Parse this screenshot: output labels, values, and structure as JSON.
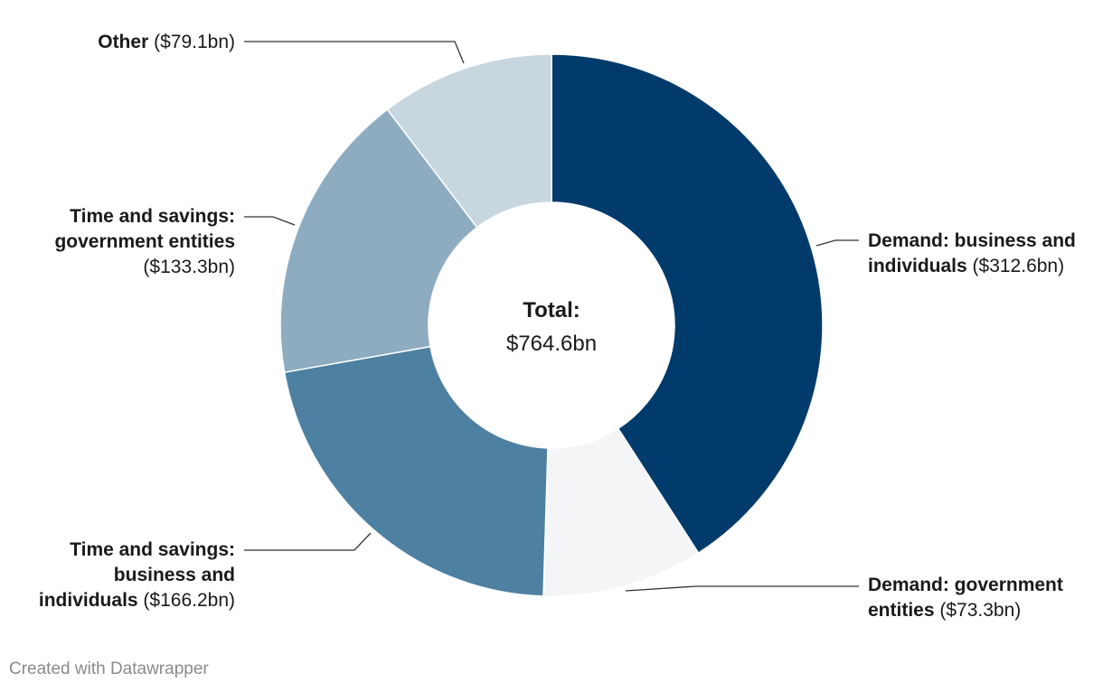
{
  "chart_data": {
    "type": "pie",
    "variant": "donut",
    "start_angle_deg": 0,
    "direction": "clockwise",
    "center_label": {
      "title": "Total:",
      "value": "$764.6bn"
    },
    "slices": [
      {
        "name": "Demand: business and individuals",
        "value_label": "($312.6bn)",
        "value": 312.6,
        "color": "#003b6b"
      },
      {
        "name": "Demand: government entities",
        "value_label": "($73.3bn)",
        "value": 73.3,
        "color": "#f3f5f7"
      },
      {
        "name": "Time and savings: business and individuals",
        "value_label": "($166.2bn)",
        "value": 166.2,
        "color": "#4d80a1"
      },
      {
        "name": "Time and savings: government entities",
        "value_label": "($133.3bn)",
        "value": 133.3,
        "color": "#8eacc0"
      },
      {
        "name": "Other",
        "value_label": "($79.1bn)",
        "value": 79.1,
        "color": "#c8d6e0"
      }
    ]
  },
  "labels": {
    "demand_business": {
      "bold1": "Demand: business and",
      "bold2": "individuals",
      "val": "($312.6bn)"
    },
    "demand_government": {
      "bold1": "Demand: government",
      "bold2": "entities",
      "val": "($73.3bn)"
    },
    "ts_business": {
      "bold1": "Time and savings:",
      "bold2": "business and",
      "bold3": "individuals",
      "val": "($166.2bn)"
    },
    "ts_government": {
      "bold1": "Time and savings:",
      "bold2": "government entities",
      "val": "($133.3bn)"
    },
    "other": {
      "bold1": "Other",
      "val": "($79.1bn)"
    }
  },
  "footer": "Created with Datawrapper"
}
